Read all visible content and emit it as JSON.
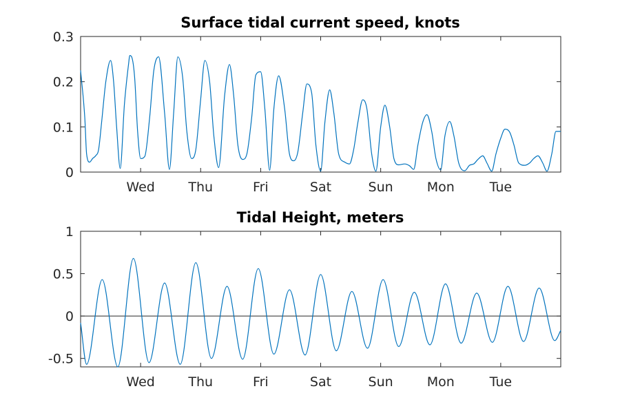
{
  "chart_data": [
    {
      "type": "line",
      "title": "Surface tidal current speed, knots",
      "xlabel": "",
      "ylabel": "",
      "xlim": [
        0,
        8
      ],
      "ylim": [
        0,
        0.3
      ],
      "yticks": [
        0,
        0.1,
        0.2,
        0.3
      ],
      "ytick_labels": [
        "0",
        "0.1",
        "0.2",
        "0.3"
      ],
      "xticks": [
        1,
        2,
        3,
        4,
        5,
        6,
        7
      ],
      "xtick_labels": [
        "Wed",
        "Thu",
        "Fri",
        "Sat",
        "Sun",
        "Mon",
        "Tue"
      ],
      "grid": false,
      "color": "#0072BD",
      "series": [
        {
          "x": [
            0.0,
            0.07,
            0.1,
            0.15,
            0.2,
            0.25,
            0.3,
            0.35,
            0.42,
            0.5,
            0.55,
            0.6,
            0.66,
            0.73,
            0.8,
            0.82,
            0.85,
            0.9,
            0.95,
            1.0,
            1.07,
            1.15,
            1.22,
            1.3,
            1.4,
            1.48,
            1.55,
            1.62,
            1.7,
            1.77,
            1.85,
            1.92,
            2.0,
            2.07,
            2.15,
            2.22,
            2.3,
            2.4,
            2.48,
            2.55,
            2.62,
            2.7,
            2.77,
            2.85,
            2.92,
            3.0,
            3.07,
            3.15,
            3.22,
            3.3,
            3.4,
            3.48,
            3.55,
            3.62,
            3.7,
            3.77,
            3.85,
            3.92,
            4.0,
            4.07,
            4.15,
            4.22,
            4.3,
            4.4,
            4.48,
            4.55,
            4.62,
            4.7,
            4.77,
            4.85,
            4.92,
            5.0,
            5.07,
            5.15,
            5.22,
            5.3,
            5.4,
            5.48,
            5.55,
            5.62,
            5.7,
            5.77,
            5.85,
            5.92,
            6.0,
            6.07,
            6.15,
            6.22,
            6.3,
            6.4,
            6.48,
            6.55,
            6.62,
            6.7,
            6.77,
            6.85,
            6.92,
            7.0,
            7.07,
            7.15,
            7.22,
            7.3,
            7.4,
            7.48,
            7.55,
            7.62,
            7.7,
            7.77,
            7.85,
            7.92,
            8.0
          ],
          "y": [
            0.225,
            0.12,
            0.04,
            0.022,
            0.03,
            0.036,
            0.05,
            0.11,
            0.2,
            0.247,
            0.2,
            0.1,
            0.008,
            0.15,
            0.24,
            0.258,
            0.255,
            0.21,
            0.09,
            0.03,
            0.035,
            0.12,
            0.225,
            0.255,
            0.13,
            0.006,
            0.13,
            0.255,
            0.21,
            0.09,
            0.03,
            0.05,
            0.16,
            0.247,
            0.2,
            0.08,
            0.01,
            0.17,
            0.238,
            0.17,
            0.06,
            0.028,
            0.04,
            0.12,
            0.215,
            0.222,
            0.14,
            0.004,
            0.14,
            0.213,
            0.14,
            0.04,
            0.025,
            0.045,
            0.13,
            0.195,
            0.175,
            0.06,
            0.002,
            0.11,
            0.182,
            0.13,
            0.04,
            0.022,
            0.018,
            0.05,
            0.11,
            0.16,
            0.14,
            0.04,
            0.002,
            0.1,
            0.148,
            0.1,
            0.03,
            0.016,
            0.018,
            0.014,
            0.006,
            0.06,
            0.11,
            0.127,
            0.09,
            0.03,
            0.005,
            0.08,
            0.112,
            0.08,
            0.02,
            0.003,
            0.015,
            0.018,
            0.028,
            0.036,
            0.02,
            0.002,
            0.04,
            0.075,
            0.095,
            0.088,
            0.06,
            0.02,
            0.015,
            0.02,
            0.03,
            0.036,
            0.02,
            0.002,
            0.04,
            0.09,
            0.09
          ]
        }
      ]
    },
    {
      "type": "line",
      "title": "Tidal Height, meters",
      "xlabel": "",
      "ylabel": "",
      "xlim": [
        0,
        8
      ],
      "ylim": [
        -0.6,
        1
      ],
      "yticks": [
        -0.5,
        0,
        0.5,
        1
      ],
      "ytick_labels": [
        "-0.5",
        "0",
        "0.5",
        "1"
      ],
      "xticks": [
        1,
        2,
        3,
        4,
        5,
        6,
        7
      ],
      "xtick_labels": [
        "Wed",
        "Thu",
        "Fri",
        "Sat",
        "Sun",
        "Mon",
        "Tue"
      ],
      "zero_line": true,
      "grid": false,
      "color": "#0072BD",
      "series": [
        {
          "x": [
            0.0,
            0.1,
            0.36,
            0.62,
            0.88,
            1.14,
            1.4,
            1.66,
            1.92,
            2.18,
            2.44,
            2.7,
            2.96,
            3.22,
            3.48,
            3.74,
            4.0,
            4.26,
            4.52,
            4.78,
            5.04,
            5.3,
            5.56,
            5.82,
            6.08,
            6.34,
            6.6,
            6.86,
            7.12,
            7.38,
            7.64,
            7.9,
            8.0
          ],
          "y": [
            -0.08,
            -0.57,
            0.43,
            -0.6,
            0.68,
            -0.55,
            0.39,
            -0.57,
            0.63,
            -0.5,
            0.35,
            -0.51,
            0.56,
            -0.45,
            0.31,
            -0.46,
            0.49,
            -0.41,
            0.29,
            -0.38,
            0.43,
            -0.36,
            0.28,
            -0.34,
            0.38,
            -0.32,
            0.27,
            -0.31,
            0.35,
            -0.3,
            0.33,
            -0.29,
            -0.17
          ]
        }
      ]
    }
  ]
}
